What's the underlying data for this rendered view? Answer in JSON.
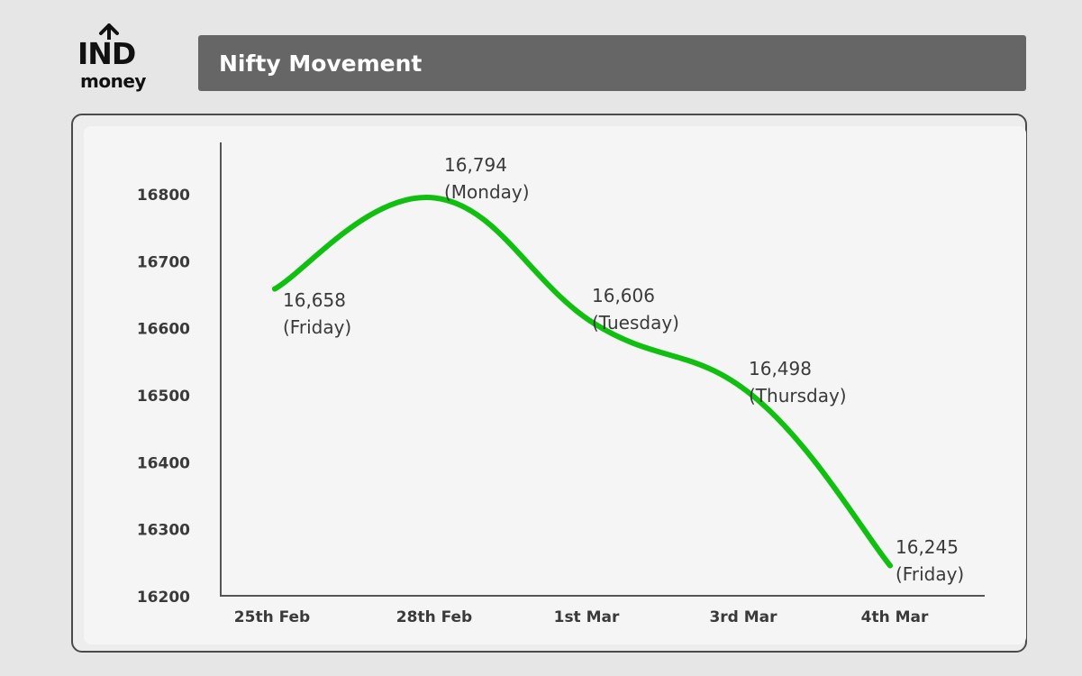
{
  "logo": {
    "line1": "IND",
    "line2": "money"
  },
  "header": {
    "title": "Nifty Movement"
  },
  "colors": {
    "line": "#11bf11",
    "title_bar": "#666666",
    "text": "#3a3a3a"
  },
  "chart_data": {
    "type": "line",
    "title": "Nifty Movement",
    "xlabel": "",
    "ylabel": "",
    "categories": [
      "25th Feb",
      "28th Feb",
      "1st Mar",
      "3rd Mar",
      "4th Mar"
    ],
    "y_ticks": [
      "16800",
      "16700",
      "16600",
      "16500",
      "16400",
      "16300",
      "16200"
    ],
    "ylim": [
      16200,
      16800
    ],
    "series": [
      {
        "values": [
          16658,
          16794,
          16606,
          16498,
          16245
        ]
      }
    ],
    "data_labels": [
      {
        "value": "16,658",
        "day": "(Friday)"
      },
      {
        "value": "16,794",
        "day": "(Monday)"
      },
      {
        "value": "16,606",
        "day": "(Tuesday)"
      },
      {
        "value": "16,498",
        "day": "(Thursday)"
      },
      {
        "value": "16,245",
        "day": "(Friday)"
      }
    ],
    "grid": false,
    "legend": "none"
  }
}
